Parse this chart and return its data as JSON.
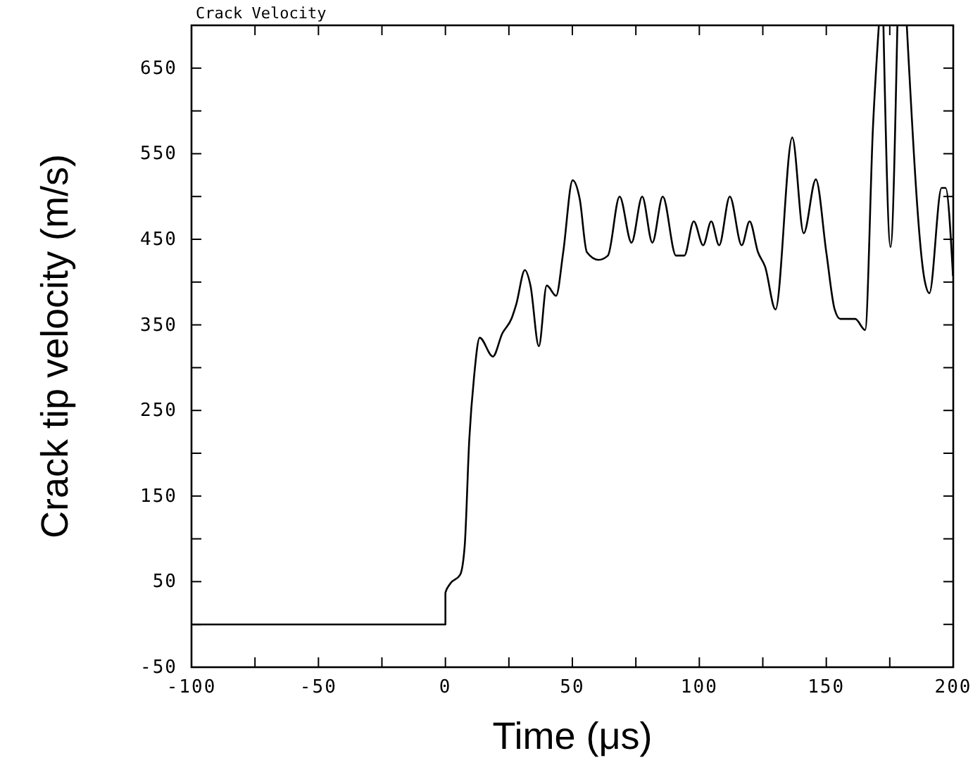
{
  "chart_data": {
    "type": "line",
    "title": "Crack Velocity",
    "xlabel": "Time (μs)",
    "ylabel": "Crack tip velocity (m/s)",
    "xlim": [
      -100,
      200
    ],
    "ylim": [
      -50,
      700
    ],
    "xticks": [
      -100,
      {
        "value": -75,
        "label": null
      },
      -50,
      {
        "value": -25,
        "label": null
      },
      0,
      {
        "value": 25,
        "label": null
      },
      50,
      {
        "value": 75,
        "label": null
      },
      100,
      {
        "value": 125,
        "label": null
      },
      150,
      {
        "value": 175,
        "label": null
      },
      200
    ],
    "yticks": [
      -50,
      {
        "value": 0,
        "label": null
      },
      50,
      {
        "value": 100,
        "label": null
      },
      150,
      {
        "value": 200,
        "label": null
      },
      250,
      {
        "value": 300,
        "label": null
      },
      350,
      {
        "value": 400,
        "label": null
      },
      450,
      {
        "value": 500,
        "label": null
      },
      550,
      {
        "value": 600,
        "label": null
      },
      650,
      {
        "value": 700,
        "label": null
      }
    ],
    "grid": false,
    "marker": "none",
    "line_style": "solid",
    "series": [
      {
        "color": "#000000",
        "x": [
          -100,
          0,
          0,
          2,
          5.8,
          7.6,
          9.4,
          11.3,
          13.5,
          18.7,
          22.4,
          26,
          27.9,
          31.3,
          33.5,
          36.8,
          39.9,
          43.6,
          46.4,
          50.1,
          52.9,
          55.7,
          60.3,
          64,
          68.6,
          73.3,
          77.5,
          81.5,
          85.6,
          90.8,
          94.1,
          97.8,
          101.5,
          104.7,
          107.8,
          112,
          116.7,
          119.8,
          123.1,
          125.9,
          130,
          136.6,
          141.1,
          145.9,
          150,
          153.3,
          155.5,
          161.4,
          165.3,
          168.4,
          170.7,
          171.5,
          172.5,
          175.3,
          178,
          180,
          181.7,
          188.8,
          190.6,
          195.4,
          197,
          199.9
        ],
        "values": [
          0,
          0,
          37,
          48,
          58,
          92,
          216,
          290,
          335,
          313,
          340,
          357,
          374,
          414,
          396,
          325,
          396,
          384,
          435,
          519,
          497,
          435,
          426,
          431,
          500,
          446,
          500,
          446,
          500,
          431,
          431,
          471,
          443,
          471,
          443,
          500,
          443,
          471,
          435,
          418,
          368,
          569,
          457,
          520,
          435,
          368,
          357,
          357,
          344,
          582,
          700,
          null,
          700,
          441,
          700,
          null,
          700,
          401,
          387,
          510,
          510,
          407
        ]
      }
    ]
  }
}
